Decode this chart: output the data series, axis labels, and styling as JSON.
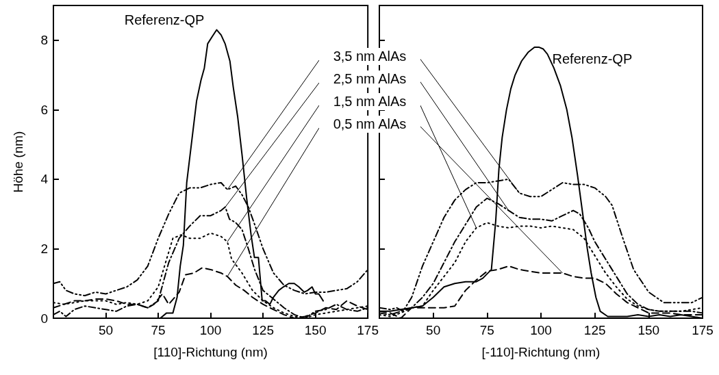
{
  "chart_data": [
    {
      "type": "line",
      "xlabel": "[110]-Richtung (nm)",
      "ylabel": "Höhe (nm)",
      "xlim": [
        25,
        175
      ],
      "ylim": [
        0,
        9
      ],
      "xticks": [
        50,
        75,
        100,
        125,
        150,
        175
      ],
      "yticks": [
        0,
        2,
        4,
        6,
        8
      ],
      "marker": "none",
      "series": [
        {
          "name": "Referenz-QP",
          "color": "#000000",
          "line_style": "solid",
          "x": [
            76,
            79,
            82,
            84,
            85.5,
            87,
            88.6,
            91,
            93.3,
            95.4,
            97,
            98.6,
            100.7,
            102.9,
            105,
            106.9,
            109.2,
            110.8,
            112.9,
            115,
            117.2,
            119.3,
            120.9,
            122.8,
            124.6,
            126.2,
            128.3,
            129.9,
            132.5,
            134.7,
            137.3,
            139.9,
            142.1,
            144.7,
            146.3,
            148.4,
            150,
            151.6,
            153.7
          ],
          "values": [
            0,
            0.15,
            0.15,
            0.6,
            1.5,
            2.1,
            3.9,
            5.1,
            6.25,
            6.85,
            7.2,
            7.9,
            8.1,
            8.3,
            8.15,
            7.9,
            7.4,
            6.65,
            5.8,
            4.7,
            3.45,
            2.4,
            1.75,
            1.75,
            0.5,
            0.5,
            0.4,
            0.6,
            0.8,
            0.9,
            1,
            1,
            0.9,
            0.75,
            0.8,
            0.9,
            0.7,
            0.7,
            0.5
          ]
        },
        {
          "name": "3,5 nm AlAs",
          "color": "#000000",
          "line_style": "dashdotdot",
          "x": [
            25,
            28,
            31,
            35,
            40,
            45,
            50,
            55,
            60,
            65,
            70,
            75,
            80,
            85,
            90,
            95,
            100,
            105,
            108,
            112,
            115,
            118,
            121,
            125,
            130,
            135,
            140,
            145,
            150,
            155,
            160,
            165,
            170,
            175
          ],
          "values": [
            1,
            1.05,
            0.8,
            0.7,
            0.65,
            0.75,
            0.7,
            0.8,
            0.9,
            1.1,
            1.5,
            2.3,
            3,
            3.6,
            3.75,
            3.75,
            3.85,
            3.9,
            3.7,
            3.8,
            3.55,
            3.2,
            2.7,
            2,
            1.3,
            0.95,
            0.8,
            0.7,
            0.75,
            0.75,
            0.8,
            0.85,
            1.05,
            1.4
          ]
        },
        {
          "name": "2,5 nm AlAs",
          "color": "#000000",
          "line_style": "dashdot",
          "x": [
            25,
            28,
            31,
            35,
            40,
            45,
            50,
            55,
            60,
            65,
            70,
            75,
            80,
            85,
            90,
            95,
            100,
            105,
            107,
            109,
            112,
            115,
            118,
            121,
            125,
            130,
            135,
            140,
            145,
            150,
            155,
            160,
            165,
            170,
            175
          ],
          "values": [
            0.1,
            0.2,
            0.05,
            0.25,
            0.35,
            0.3,
            0.25,
            0.2,
            0.35,
            0.4,
            0.3,
            0.5,
            1.6,
            2.3,
            2.65,
            2.95,
            2.95,
            3.1,
            3.2,
            2.85,
            2.75,
            2.55,
            2,
            1.4,
            0.8,
            0.55,
            0.3,
            0.1,
            0,
            0.2,
            0.25,
            0.4,
            0.25,
            0.2,
            0.3
          ]
        },
        {
          "name": "1,5 nm AlAs",
          "color": "#000000",
          "line_style": "dotted",
          "x": [
            25,
            30,
            35,
            40,
            45,
            50,
            55,
            60,
            65,
            70,
            75,
            78,
            82,
            86,
            90,
            95,
            100,
            105,
            108,
            110,
            115,
            120,
            125,
            130,
            135,
            140,
            145,
            150,
            155,
            160,
            165,
            170,
            175
          ],
          "values": [
            0.45,
            0.4,
            0.45,
            0.5,
            0.5,
            0.5,
            0.4,
            0.45,
            0.4,
            0.5,
            0.9,
            1.5,
            2.3,
            2.4,
            2.3,
            2.3,
            2.45,
            2.35,
            2.2,
            1.7,
            1.3,
            0.8,
            0.5,
            0.3,
            0.15,
            0.05,
            0,
            0.1,
            0.15,
            0.2,
            0.25,
            0.3,
            0.35
          ]
        },
        {
          "name": "0,5 nm AlAs",
          "color": "#000000",
          "line_style": "dashed",
          "x": [
            25,
            30,
            35,
            40,
            45,
            50,
            55,
            60,
            65,
            70,
            73,
            77,
            80,
            85,
            88,
            92,
            96,
            100,
            105,
            108,
            112,
            116,
            120,
            125,
            130,
            135,
            140,
            145,
            150,
            155,
            160,
            165,
            170,
            175
          ],
          "values": [
            0.3,
            0.4,
            0.5,
            0.5,
            0.55,
            0.55,
            0.5,
            0.4,
            0.4,
            0.3,
            0.4,
            0.7,
            0.4,
            0.75,
            1.25,
            1.3,
            1.45,
            1.4,
            1.3,
            1.2,
            0.95,
            0.8,
            0.6,
            0.4,
            0.25,
            0.1,
            0,
            0.05,
            0.15,
            0.3,
            0.25,
            0.5,
            0.35,
            0.25
          ]
        }
      ]
    },
    {
      "type": "line",
      "xlabel": "[-110]-Richtung (nm)",
      "xlim": [
        25,
        175
      ],
      "ylim": [
        0,
        9
      ],
      "xticks": [
        50,
        75,
        100,
        125,
        150,
        175
      ],
      "yticks": [
        0,
        2,
        4,
        6,
        8
      ],
      "tick_labels": "x",
      "marker": "none",
      "series": [
        {
          "name": "Referenz-QP",
          "color": "#000000",
          "line_style": "solid",
          "x": [
            25,
            30,
            35,
            40,
            45,
            50,
            55,
            60,
            65,
            70,
            73,
            77,
            79,
            80.5,
            82,
            84,
            86,
            88,
            91,
            94,
            97,
            99,
            101,
            103,
            106,
            109,
            112,
            114.4,
            117,
            119.6,
            121.5,
            123.3,
            125.5,
            127.5,
            131,
            135,
            140,
            145,
            150,
            155,
            160,
            165,
            170,
            175
          ],
          "values": [
            0.2,
            0.2,
            0.25,
            0.3,
            0.35,
            0.6,
            0.9,
            1,
            1.05,
            1.05,
            1.15,
            1.4,
            2.8,
            4.3,
            5.2,
            6,
            6.6,
            7,
            7.4,
            7.65,
            7.8,
            7.8,
            7.75,
            7.6,
            7.2,
            6.7,
            6,
            5.2,
            4.1,
            2.9,
            2,
            1.3,
            0.6,
            0.2,
            0.05,
            0.05,
            0.05,
            0.1,
            0.05,
            0.1,
            0.05,
            0.1,
            0.05,
            0
          ]
        },
        {
          "color": "#000000",
          "line_style": "dashdotdot",
          "x": [
            25,
            30,
            33,
            36,
            40,
            45,
            50,
            55,
            60,
            65,
            70,
            75,
            80,
            85,
            90,
            95,
            100,
            105,
            110,
            115,
            120,
            125,
            130,
            133,
            138,
            143,
            150,
            157,
            165,
            170,
            175
          ],
          "values": [
            0.3,
            0.25,
            0.3,
            0.2,
            0.6,
            1.5,
            2.2,
            2.9,
            3.4,
            3.7,
            3.9,
            3.9,
            3.95,
            4,
            3.6,
            3.5,
            3.5,
            3.7,
            3.9,
            3.85,
            3.85,
            3.75,
            3.5,
            3.25,
            2.3,
            1.4,
            0.75,
            0.45,
            0.45,
            0.45,
            0.6
          ]
        },
        {
          "color": "#000000",
          "line_style": "dashdot",
          "x": [
            25,
            30,
            35,
            40,
            45,
            50,
            55,
            60,
            65,
            70,
            75,
            80,
            85,
            90,
            95,
            100,
            105,
            110,
            115,
            118,
            122,
            125,
            130,
            135,
            140,
            145,
            150,
            155,
            160,
            165,
            170,
            175
          ],
          "values": [
            0.15,
            0.1,
            0.2,
            0.3,
            0.6,
            1,
            1.6,
            2.2,
            2.7,
            3.2,
            3.45,
            3.3,
            3.1,
            2.9,
            2.85,
            2.85,
            2.8,
            2.95,
            3.1,
            3,
            2.6,
            2.2,
            1.7,
            1.2,
            0.7,
            0.4,
            0.25,
            0.2,
            0.2,
            0.2,
            0.2,
            0.15
          ]
        },
        {
          "color": "#000000",
          "line_style": "dotted",
          "x": [
            25,
            30,
            35,
            40,
            45,
            50,
            55,
            60,
            65,
            70,
            75,
            80,
            85,
            90,
            95,
            100,
            105,
            110,
            115,
            120,
            125,
            130,
            135,
            140,
            145,
            150,
            155,
            160,
            165,
            170,
            175
          ],
          "values": [
            0.1,
            0.05,
            0.15,
            0.3,
            0.35,
            0.8,
            1.2,
            1.6,
            2.2,
            2.6,
            2.75,
            2.65,
            2.6,
            2.65,
            2.65,
            2.6,
            2.65,
            2.6,
            2.55,
            2.3,
            1.8,
            1.3,
            0.9,
            0.55,
            0.35,
            0.25,
            0.2,
            0.2,
            0.2,
            0.25,
            0.3
          ]
        },
        {
          "color": "#000000",
          "line_style": "dashed",
          "x": [
            25,
            30,
            35,
            40,
            45,
            50,
            55,
            60,
            65,
            70,
            75,
            80,
            85,
            90,
            95,
            100,
            105,
            110,
            115,
            120,
            125,
            130,
            135,
            140,
            145,
            150,
            155,
            160,
            165,
            170,
            175
          ],
          "values": [
            0.2,
            0.15,
            0,
            0.3,
            0.3,
            0.3,
            0.3,
            0.35,
            0.8,
            1.1,
            1.35,
            1.4,
            1.5,
            1.4,
            1.35,
            1.3,
            1.3,
            1.3,
            1.2,
            1.15,
            1.15,
            1,
            0.7,
            0.45,
            0.3,
            0.15,
            0.15,
            0.15,
            0.1,
            0.1,
            0.1
          ]
        }
      ]
    }
  ]
}
